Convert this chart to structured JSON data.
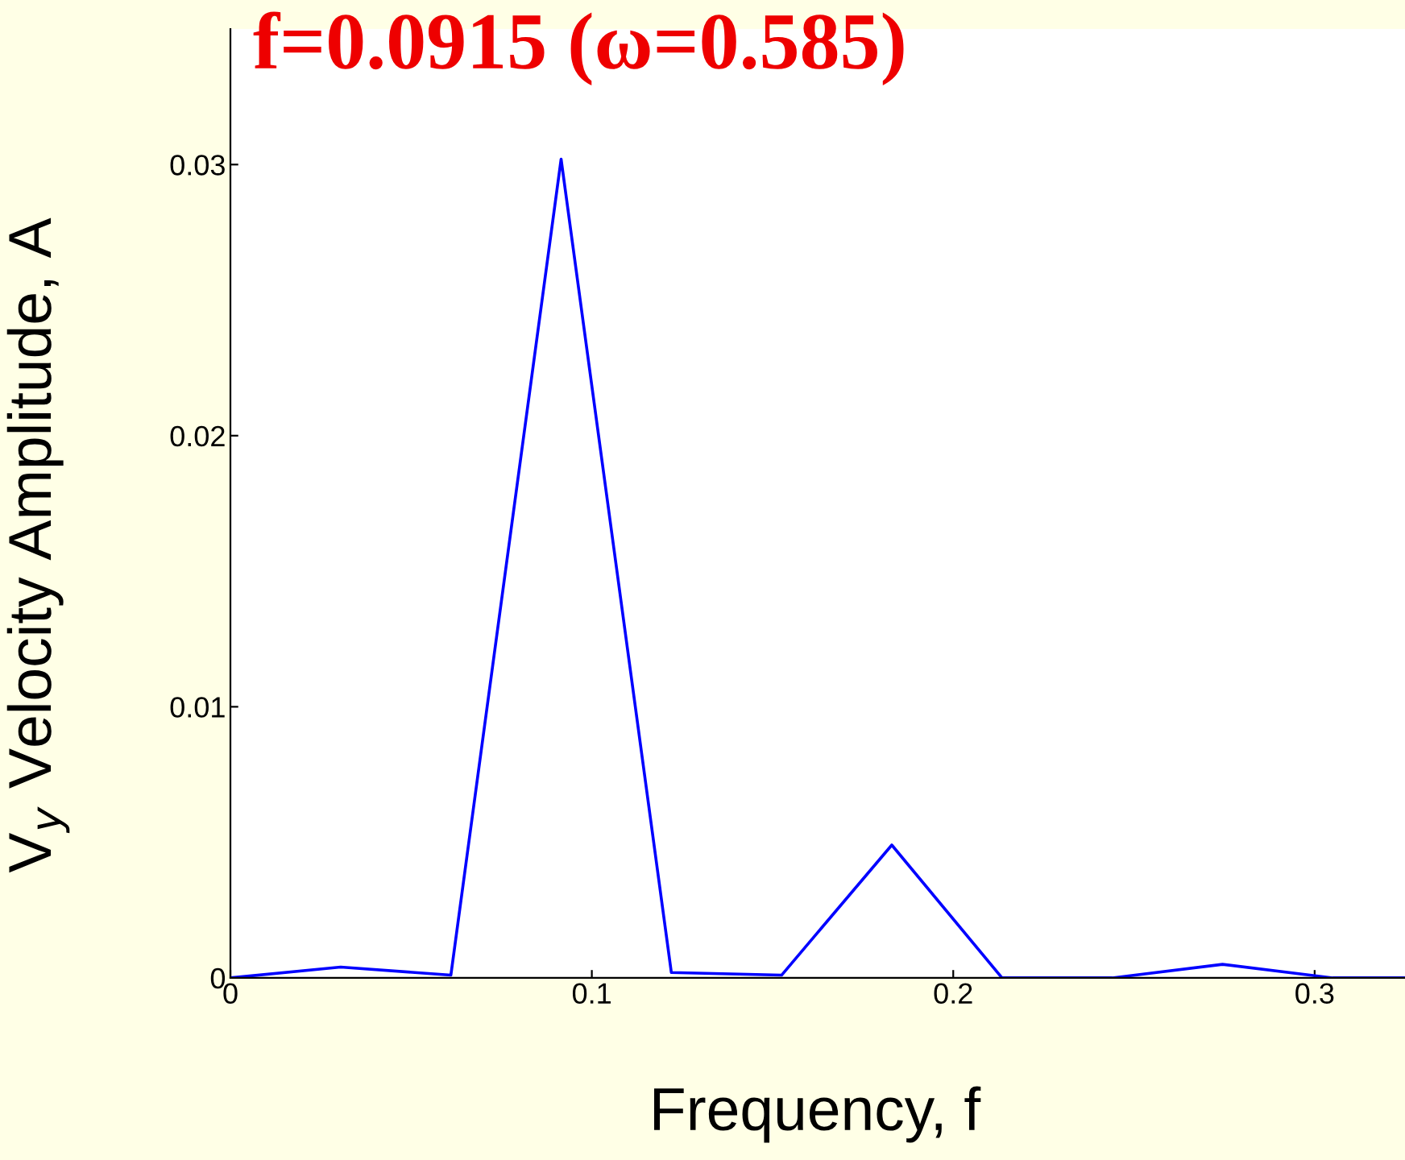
{
  "chart_data": {
    "type": "line",
    "title": "f=0.0915 (ω=0.585)",
    "xlabel": "Frequency, f",
    "ylabel": "V$_{y}$ Velocity Amplitude, A",
    "x": [
      0,
      0.0305,
      0.061,
      0.0915,
      0.122,
      0.1525,
      0.183,
      0.2135,
      0.244,
      0.2745,
      0.305,
      0.325
    ],
    "series": [
      {
        "color": "#0000ff",
        "values": [
          0,
          0.0004,
          0.0001,
          0.0302,
          0.0002,
          0.0001,
          0.0049,
          0,
          0,
          0.0005,
          0,
          0
        ]
      }
    ],
    "xlim": [
      0,
      0.325
    ],
    "ylim": [
      0,
      0.035
    ],
    "xticks": [
      0,
      0.1,
      0.2,
      0.3
    ],
    "yticks": [
      0,
      0.01,
      0.02,
      0.03
    ],
    "grid": false,
    "legend": false,
    "marker": "none",
    "line_style": "solid"
  }
}
